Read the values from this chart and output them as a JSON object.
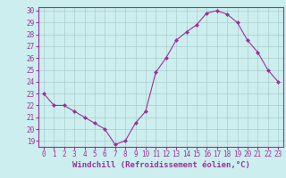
{
  "x": [
    0,
    1,
    2,
    3,
    4,
    5,
    6,
    7,
    8,
    9,
    10,
    11,
    12,
    13,
    14,
    15,
    16,
    17,
    18,
    19,
    20,
    21,
    22,
    23
  ],
  "y": [
    23,
    22,
    22,
    21.5,
    21,
    20.5,
    20,
    18.7,
    19,
    20.5,
    21.5,
    24.8,
    26,
    27.5,
    28.2,
    28.8,
    29.8,
    30,
    29.7,
    29,
    27.5,
    26.5,
    25,
    24
  ],
  "line_color": "#993399",
  "marker": "D",
  "marker_size": 2,
  "bg_color": "#cceeee",
  "grid_color": "#aacccc",
  "xlabel": "Windchill (Refroidissement éolien,°C)",
  "xlabel_color": "#993399",
  "tick_color": "#993399",
  "spine_color": "#993399",
  "ylim": [
    18.5,
    30.3
  ],
  "xlim": [
    -0.5,
    23.5
  ],
  "yticks": [
    19,
    20,
    21,
    22,
    23,
    24,
    25,
    26,
    27,
    28,
    29,
    30
  ],
  "xticks": [
    0,
    1,
    2,
    3,
    4,
    5,
    6,
    7,
    8,
    9,
    10,
    11,
    12,
    13,
    14,
    15,
    16,
    17,
    18,
    19,
    20,
    21,
    22,
    23
  ],
  "tick_fontsize": 5.5,
  "xlabel_fontsize": 6.5
}
